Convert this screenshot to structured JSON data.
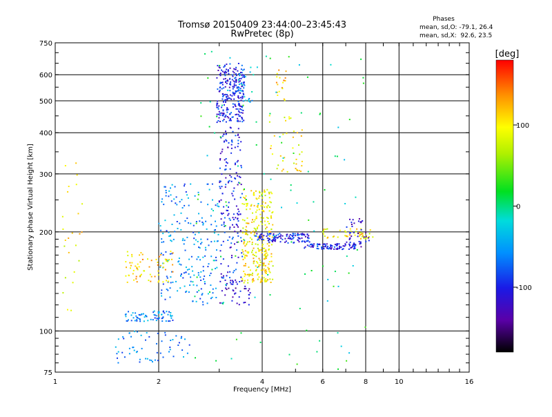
{
  "chart_data": {
    "type": "scatter",
    "title": "Tromsø 20150409 23:44:00–23:45:43",
    "subtitle": "RwPretec (8p)",
    "xlabel": "Frequency [MHz]",
    "ylabel": "Stationary phase Virtual Height [km]",
    "x_scale": "log",
    "y_scale": "log",
    "xlim": [
      1,
      16
    ],
    "ylim": [
      75,
      750
    ],
    "x_ticks": [
      1,
      2,
      4,
      6,
      8,
      10,
      16
    ],
    "y_ticks": [
      75,
      100,
      200,
      300,
      400,
      500,
      600,
      750
    ],
    "x_tick_labels": [
      "1",
      "2",
      "4",
      "6",
      "8",
      "10",
      "16"
    ],
    "y_tick_labels": [
      "75",
      "100",
      "200",
      "300",
      "400",
      "500",
      "600",
      "750"
    ],
    "grid": true,
    "stats": {
      "heading": "Phases",
      "o_line": "mean, sd,O: -79.1, 26.4",
      "x_line": "mean, sd,X:  92.6, 23.5"
    },
    "colorbar": {
      "label": "[deg]",
      "range": [
        -180,
        180
      ],
      "ticks": [
        100,
        0,
        -100
      ],
      "tick_labels": [
        "100",
        "0",
        "-100"
      ]
    },
    "clusters": [
      {
        "f": [
          2.95,
          3.55
        ],
        "h": [
          430,
          650
        ],
        "phase": -100,
        "n": 260
      },
      {
        "f": [
          3.4,
          3.8
        ],
        "h": [
          470,
          640
        ],
        "phase": -40,
        "n": 25
      },
      {
        "f": [
          4.4,
          4.7
        ],
        "h": [
          500,
          620
        ],
        "phase": 120,
        "n": 18
      },
      {
        "f": [
          3.0,
          3.5
        ],
        "h": [
          140,
          420
        ],
        "phase": -100,
        "n": 180
      },
      {
        "f": [
          3.5,
          4.3
        ],
        "h": [
          175,
          270
        ],
        "phase": 100,
        "n": 170
      },
      {
        "f": [
          3.5,
          4.3
        ],
        "h": [
          140,
          175
        ],
        "phase": 100,
        "n": 120
      },
      {
        "f": [
          3.8,
          5.5
        ],
        "h": [
          185,
          198
        ],
        "phase": -100,
        "n": 120
      },
      {
        "f": [
          5.3,
          7.5
        ],
        "h": [
          177,
          184
        ],
        "phase": -100,
        "n": 90
      },
      {
        "f": [
          6.0,
          8.4
        ],
        "h": [
          190,
          205
        ],
        "phase": 100,
        "n": 45
      },
      {
        "f": [
          7.0,
          8.3
        ],
        "h": [
          180,
          220
        ],
        "phase": -120,
        "n": 40
      },
      {
        "f": [
          2.0,
          3.0
        ],
        "h": [
          120,
          280
        ],
        "phase": -60,
        "n": 220
      },
      {
        "f": [
          1.6,
          2.2
        ],
        "h": [
          107,
          115
        ],
        "phase": -60,
        "n": 70
      },
      {
        "f": [
          1.6,
          2.2
        ],
        "h": [
          140,
          175
        ],
        "phase": 110,
        "n": 70
      },
      {
        "f": [
          1.5,
          2.5
        ],
        "h": [
          80,
          100
        ],
        "phase": -60,
        "n": 60
      },
      {
        "f": [
          3.0,
          3.7
        ],
        "h": [
          120,
          145
        ],
        "phase": -120,
        "n": 40
      },
      {
        "f": [
          4.2,
          5.3
        ],
        "h": [
          300,
          460
        ],
        "phase": 100,
        "n": 40
      },
      {
        "f": [
          2.5,
          8.0
        ],
        "h": [
          75,
          740
        ],
        "phase": 0,
        "n": 120
      },
      {
        "f": [
          1.05,
          1.2
        ],
        "h": [
          110,
          360
        ],
        "phase": 100,
        "n": 25
      }
    ]
  }
}
